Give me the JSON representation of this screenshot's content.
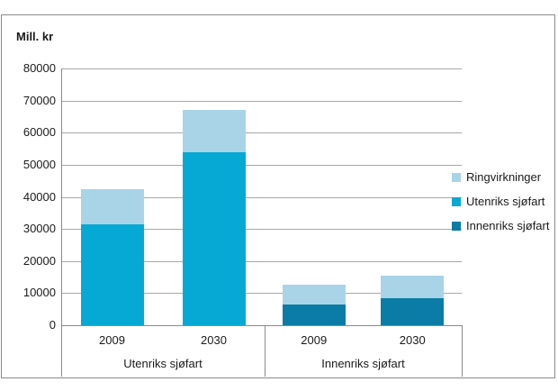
{
  "figure": {
    "y_axis_title": "Mill. kr"
  },
  "colors": {
    "innenriks_sjofart": "#0a7ca6",
    "utenriks_sjofart": "#06a9d3",
    "ringvirkninger": "#a9d4e8",
    "gridline": "#a8a8a8",
    "axis_border": "#8a8a8a",
    "text": "#1a1a1a",
    "background": "#ffffff"
  },
  "chart_data": {
    "type": "bar",
    "stacked": true,
    "title": "",
    "y_axis_title": "Mill. kr",
    "ylim": [
      0,
      80000
    ],
    "yticks": [
      0,
      10000,
      20000,
      30000,
      40000,
      50000,
      60000,
      70000,
      80000
    ],
    "grid": "horizontal",
    "legend_position": "right",
    "groups": [
      {
        "label": "Utenriks sjøfart",
        "categories": [
          "2009",
          "2030"
        ]
      },
      {
        "label": "Innenriks sjøfart",
        "categories": [
          "2009",
          "2030"
        ]
      }
    ],
    "bar_order_note": "values indexed as [Utenriks-2009, Utenriks-2030, Innenriks-2009, Innenriks-2030]; series listed bottom-to-top of stack",
    "series": [
      {
        "name": "Innenriks sjøfart",
        "color": "#0a7ca6",
        "values": [
          0,
          0,
          6500,
          8300
        ]
      },
      {
        "name": "Utenriks sjøfart",
        "color": "#06a9d3",
        "values": [
          31500,
          54000,
          0,
          0
        ]
      },
      {
        "name": "Ringvirkninger",
        "color": "#a9d4e8",
        "values": [
          10800,
          13000,
          6000,
          7200
        ]
      }
    ],
    "bar_totals": [
      42300,
      67000,
      12500,
      15500
    ]
  }
}
